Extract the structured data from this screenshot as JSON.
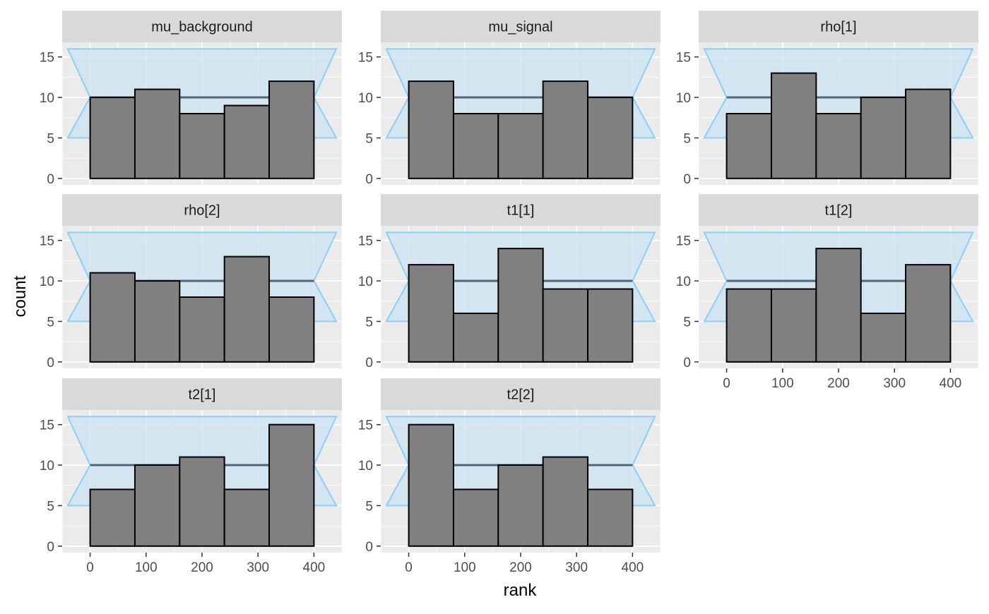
{
  "chart_data": {
    "type": "bar",
    "subtype": "faceted rank histogram",
    "xlabel": "rank",
    "ylabel": "count",
    "xlim": [
      -50,
      450
    ],
    "ylim": [
      0,
      16
    ],
    "x_ticks": [
      0,
      100,
      200,
      300,
      400
    ],
    "y_ticks": [
      0,
      5,
      10,
      15
    ],
    "grid": true,
    "bin_edges": [
      0,
      80,
      160,
      240,
      320,
      400
    ],
    "expected_count": 10,
    "band": {
      "outer_low": 5,
      "outer_high": 16,
      "x_min": -40,
      "x_max": 440
    },
    "colors": {
      "panel_background": "#ebebeb",
      "grid": "#ffffff",
      "strip_background": "#d9d9d9",
      "bar_fill": "#808080",
      "bar_stroke": "#000000",
      "band_fill": "#c9e3f1",
      "band_stroke": "#8ccff7",
      "mean_line": "#4d6878",
      "axis_text": "#4d4d4d",
      "title_text": "#000000"
    },
    "panels": [
      {
        "name": "mu_background",
        "values": [
          10,
          11,
          8,
          9,
          12
        ]
      },
      {
        "name": "mu_signal",
        "values": [
          12,
          8,
          8,
          12,
          10
        ]
      },
      {
        "name": "rho[1]",
        "values": [
          8,
          13,
          8,
          10,
          11
        ]
      },
      {
        "name": "rho[2]",
        "values": [
          11,
          10,
          8,
          13,
          8
        ]
      },
      {
        "name": "t1[1]",
        "values": [
          12,
          6,
          14,
          9,
          9
        ]
      },
      {
        "name": "t1[2]",
        "values": [
          9,
          9,
          14,
          6,
          12
        ]
      },
      {
        "name": "t2[1]",
        "values": [
          7,
          10,
          11,
          7,
          15
        ]
      },
      {
        "name": "t2[2]",
        "values": [
          15,
          7,
          10,
          11,
          7
        ]
      }
    ]
  }
}
